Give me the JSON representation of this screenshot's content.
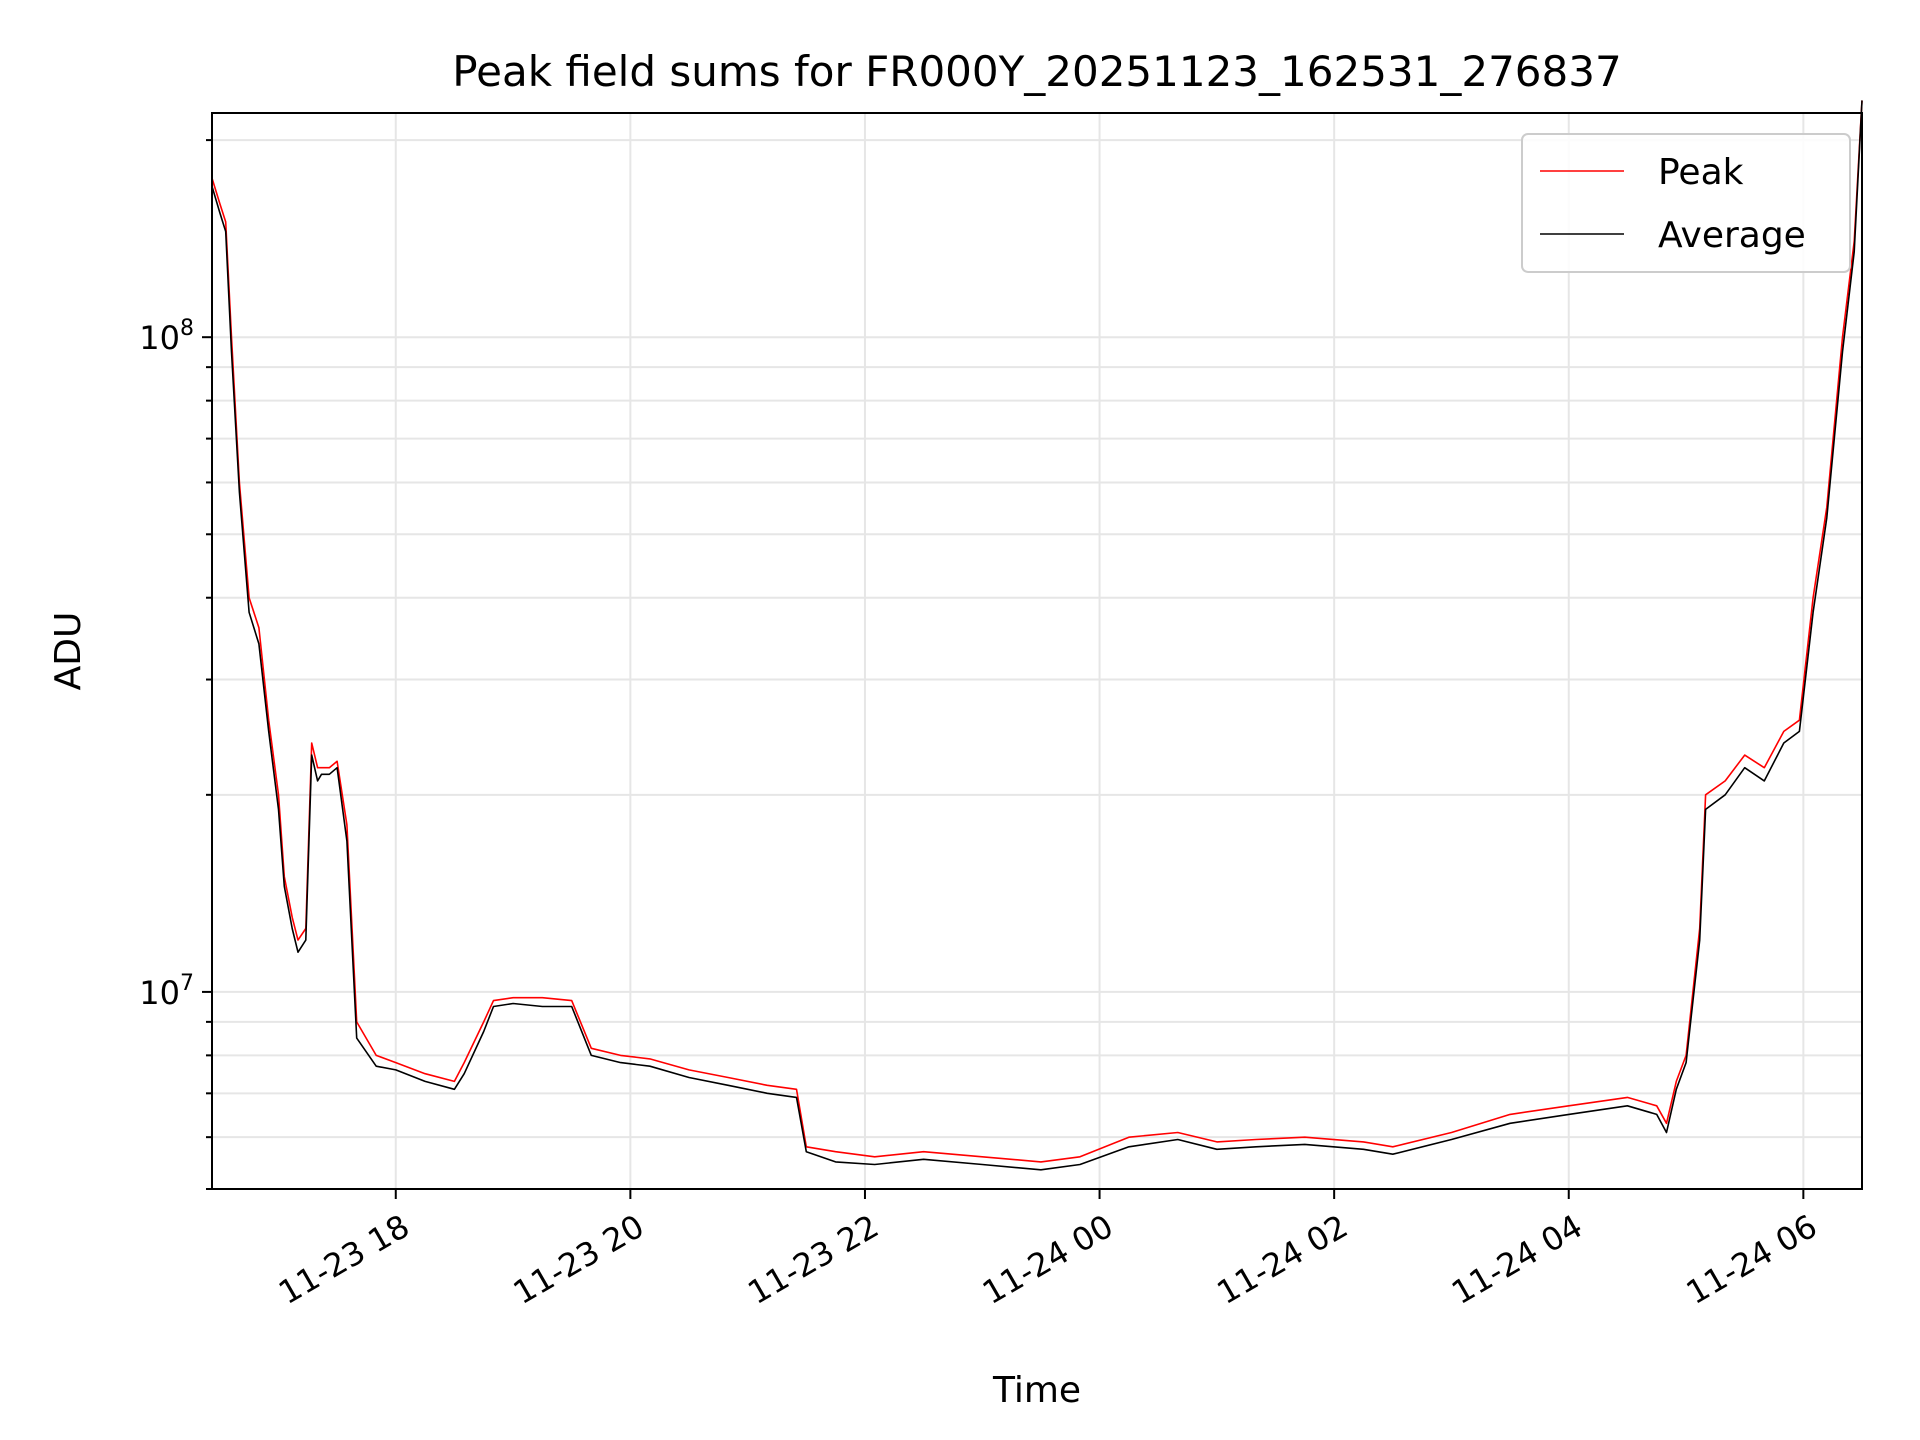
{
  "chart_data": {
    "type": "line",
    "title": "Peak field sums for FR000Y_20251123_162531_276837",
    "xlabel": "Time",
    "ylabel": "ADU",
    "yscale": "log",
    "ylim": [
      5000000,
      220000000
    ],
    "xlim": [
      "2025-11-23 16:26",
      "2025-11-24 06:30"
    ],
    "grid": true,
    "legend_position": "top-right",
    "x_ticks": [
      "11-23 18",
      "11-23 20",
      "11-23 22",
      "11-24 00",
      "11-24 02",
      "11-24 04",
      "11-24 06"
    ],
    "x_tick_times": [
      "2025-11-23 18:00",
      "2025-11-23 20:00",
      "2025-11-23 22:00",
      "2025-11-24 00:00",
      "2025-11-24 02:00",
      "2025-11-24 04:00",
      "2025-11-24 06:00"
    ],
    "y_ticks": [
      {
        "value": 10000000,
        "base": "10",
        "exp": "7"
      },
      {
        "value": 100000000,
        "base": "10",
        "exp": "8"
      }
    ],
    "series": [
      {
        "name": "Peak",
        "color": "#ff0000",
        "x": [
          "2025-11-23 16:26",
          "2025-11-23 16:30",
          "2025-11-23 16:33",
          "2025-11-23 16:36",
          "2025-11-23 16:40",
          "2025-11-23 16:45",
          "2025-11-23 16:50",
          "2025-11-23 16:55",
          "2025-11-23 17:00",
          "2025-11-23 17:03",
          "2025-11-23 17:07",
          "2025-11-23 17:10",
          "2025-11-23 17:14",
          "2025-11-23 17:17",
          "2025-11-23 17:20",
          "2025-11-23 17:22",
          "2025-11-23 17:26",
          "2025-11-23 17:30",
          "2025-11-23 17:35",
          "2025-11-23 17:40",
          "2025-11-23 17:50",
          "2025-11-23 18:00",
          "2025-11-23 18:15",
          "2025-11-23 18:30",
          "2025-11-23 18:35",
          "2025-11-23 18:45",
          "2025-11-23 18:50",
          "2025-11-23 19:00",
          "2025-11-23 19:15",
          "2025-11-23 19:30",
          "2025-11-23 19:40",
          "2025-11-23 19:55",
          "2025-11-23 20:10",
          "2025-11-23 20:30",
          "2025-11-23 20:50",
          "2025-11-23 21:10",
          "2025-11-23 21:25",
          "2025-11-23 21:30",
          "2025-11-23 21:45",
          "2025-11-23 22:05",
          "2025-11-23 22:30",
          "2025-11-23 23:00",
          "2025-11-23 23:30",
          "2025-11-23 23:50",
          "2025-11-24 00:15",
          "2025-11-24 00:40",
          "2025-11-24 01:00",
          "2025-11-24 01:20",
          "2025-11-24 01:45",
          "2025-11-24 02:15",
          "2025-11-24 02:30",
          "2025-11-24 03:00",
          "2025-11-24 03:30",
          "2025-11-24 04:00",
          "2025-11-24 04:30",
          "2025-11-24 04:45",
          "2025-11-24 04:50",
          "2025-11-24 04:55",
          "2025-11-24 05:00",
          "2025-11-24 05:07",
          "2025-11-24 05:10",
          "2025-11-24 05:20",
          "2025-11-24 05:30",
          "2025-11-24 05:40",
          "2025-11-24 05:50",
          "2025-11-24 05:58",
          "2025-11-24 06:05",
          "2025-11-24 06:12",
          "2025-11-24 06:20",
          "2025-11-24 06:26",
          "2025-11-24 06:30"
        ],
        "values": [
          175000000,
          160000000,
          150000000,
          100000000,
          60000000,
          40000000,
          36000000,
          26000000,
          20000000,
          15000000,
          13000000,
          12000000,
          12500000,
          24000000,
          22000000,
          22000000,
          22000000,
          22500000,
          18000000,
          9000000,
          8000000,
          7800000,
          7500000,
          7300000,
          7800000,
          9000000,
          9700000,
          9800000,
          9800000,
          9700000,
          8200000,
          8000000,
          7900000,
          7600000,
          7400000,
          7200000,
          7100000,
          5800000,
          5700000,
          5600000,
          5700000,
          5600000,
          5500000,
          5600000,
          6000000,
          6100000,
          5900000,
          5950000,
          6000000,
          5900000,
          5800000,
          6100000,
          6500000,
          6700000,
          6900000,
          6700000,
          6300000,
          7300000,
          8000000,
          12500000,
          20000000,
          21000000,
          23000000,
          22000000,
          25000000,
          26000000,
          40000000,
          55000000,
          100000000,
          140000000,
          230000000
        ]
      },
      {
        "name": "Average",
        "color": "#000000",
        "x": [
          "2025-11-23 16:26",
          "2025-11-23 16:30",
          "2025-11-23 16:33",
          "2025-11-23 16:36",
          "2025-11-23 16:40",
          "2025-11-23 16:45",
          "2025-11-23 16:50",
          "2025-11-23 16:55",
          "2025-11-23 17:00",
          "2025-11-23 17:03",
          "2025-11-23 17:07",
          "2025-11-23 17:10",
          "2025-11-23 17:14",
          "2025-11-23 17:17",
          "2025-11-23 17:20",
          "2025-11-23 17:22",
          "2025-11-23 17:26",
          "2025-11-23 17:30",
          "2025-11-23 17:35",
          "2025-11-23 17:40",
          "2025-11-23 17:50",
          "2025-11-23 18:00",
          "2025-11-23 18:15",
          "2025-11-23 18:30",
          "2025-11-23 18:35",
          "2025-11-23 18:45",
          "2025-11-23 18:50",
          "2025-11-23 19:00",
          "2025-11-23 19:15",
          "2025-11-23 19:30",
          "2025-11-23 19:40",
          "2025-11-23 19:55",
          "2025-11-23 20:10",
          "2025-11-23 20:30",
          "2025-11-23 20:50",
          "2025-11-23 21:10",
          "2025-11-23 21:25",
          "2025-11-23 21:30",
          "2025-11-23 21:45",
          "2025-11-23 22:05",
          "2025-11-23 22:30",
          "2025-11-23 23:00",
          "2025-11-23 23:30",
          "2025-11-23 23:50",
          "2025-11-24 00:15",
          "2025-11-24 00:40",
          "2025-11-24 01:00",
          "2025-11-24 01:20",
          "2025-11-24 01:45",
          "2025-11-24 02:15",
          "2025-11-24 02:30",
          "2025-11-24 03:00",
          "2025-11-24 03:30",
          "2025-11-24 04:00",
          "2025-11-24 04:30",
          "2025-11-24 04:45",
          "2025-11-24 04:50",
          "2025-11-24 04:55",
          "2025-11-24 05:00",
          "2025-11-24 05:07",
          "2025-11-24 05:10",
          "2025-11-24 05:20",
          "2025-11-24 05:30",
          "2025-11-24 05:40",
          "2025-11-24 05:50",
          "2025-11-24 05:58",
          "2025-11-24 06:05",
          "2025-11-24 06:12",
          "2025-11-24 06:20",
          "2025-11-24 06:26",
          "2025-11-24 06:30"
        ],
        "values": [
          170000000,
          155000000,
          145000000,
          95000000,
          58000000,
          38000000,
          34000000,
          25000000,
          19000000,
          14500000,
          12500000,
          11500000,
          12000000,
          23000000,
          21000000,
          21500000,
          21500000,
          22000000,
          17000000,
          8500000,
          7700000,
          7600000,
          7300000,
          7100000,
          7500000,
          8700000,
          9500000,
          9600000,
          9500000,
          9500000,
          8000000,
          7800000,
          7700000,
          7400000,
          7200000,
          7000000,
          6900000,
          5700000,
          5500000,
          5450000,
          5550000,
          5450000,
          5350000,
          5450000,
          5800000,
          5950000,
          5750000,
          5800000,
          5850000,
          5750000,
          5650000,
          5950000,
          6300000,
          6500000,
          6700000,
          6500000,
          6100000,
          7100000,
          7800000,
          12000000,
          19000000,
          20000000,
          22000000,
          21000000,
          24000000,
          25000000,
          38000000,
          53000000,
          95000000,
          135000000,
          230000000
        ]
      }
    ]
  }
}
